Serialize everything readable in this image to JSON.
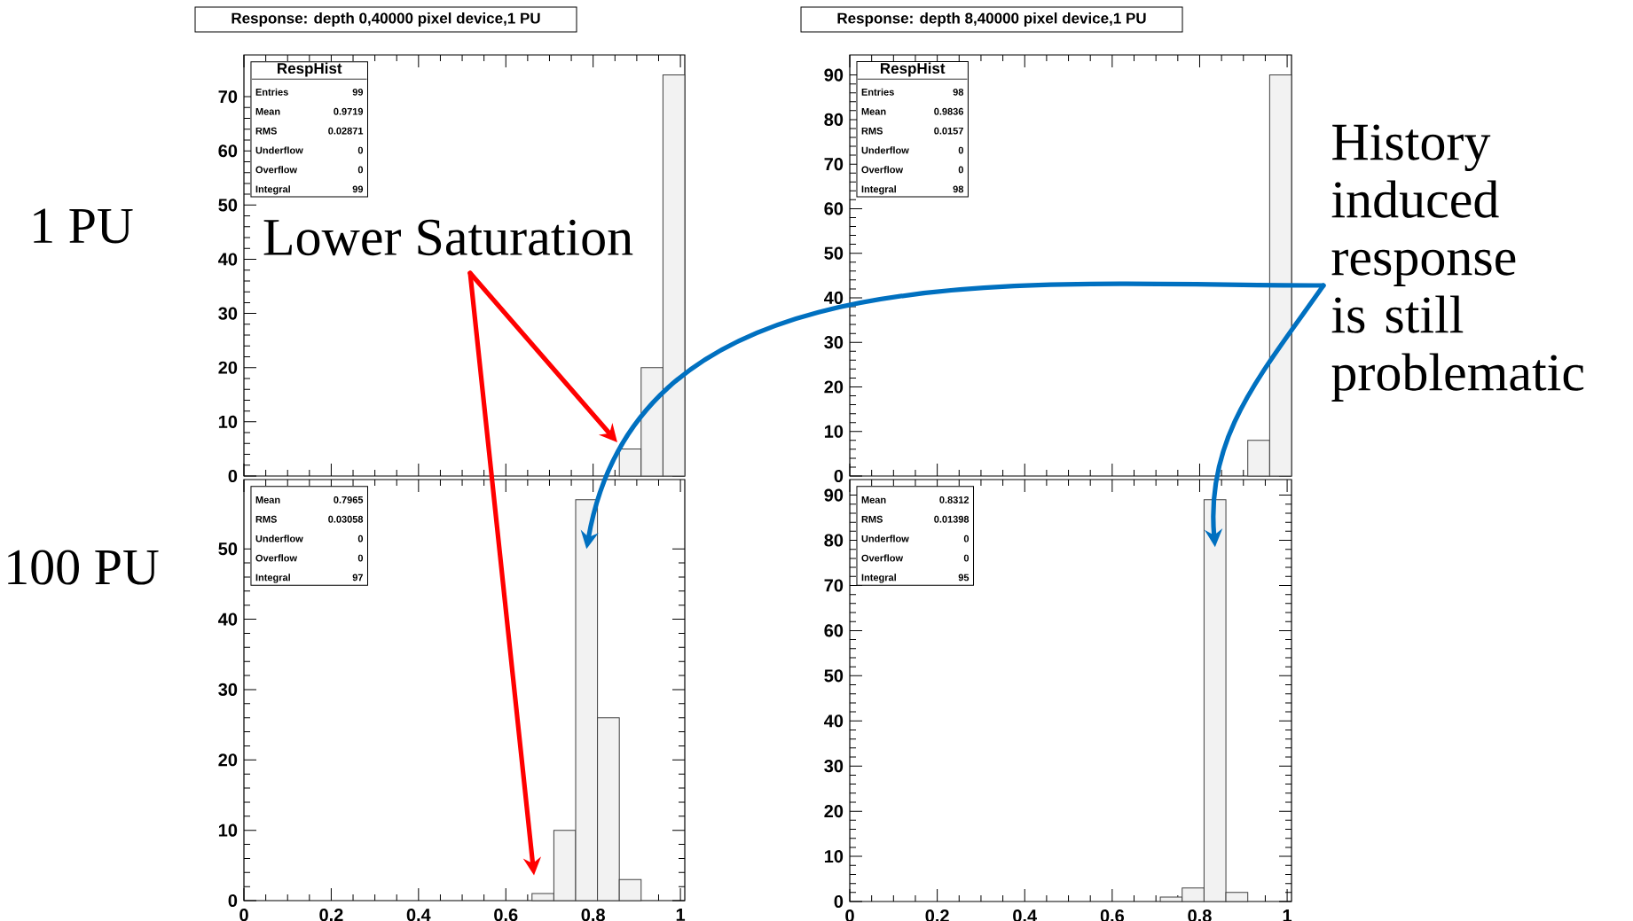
{
  "chart_data": [
    {
      "type": "histogram",
      "title": "Response: depth 0,40000 pixel device,1 PU",
      "ylabel": "1 PU",
      "legend_title": "RespHist",
      "bins": [
        0.86,
        0.91,
        0.96,
        1.01
      ],
      "values": [
        5,
        20,
        74
      ],
      "color": "#f2f2f2",
      "xlim": [
        0,
        1.01
      ],
      "ylim": [
        0,
        77.7
      ],
      "xticks": [
        0,
        0.2,
        0.4,
        0.6,
        0.8,
        1
      ],
      "yticks": [
        0,
        10,
        20,
        30,
        40,
        50,
        60,
        70
      ],
      "tick_labels": "y",
      "annotations": [
        "Entries",
        "99",
        "Mean",
        "0.9719",
        "RMS",
        "0.02871",
        "Underflow",
        "0",
        "Overflow",
        "0",
        "Integral",
        "99",
        "Lower Saturation"
      ]
    },
    {
      "type": "histogram",
      "title": "Response: depth 8,40000 pixel device,1 PU",
      "legend_title": "RespHist",
      "bins": [
        0.91,
        0.96,
        1.01
      ],
      "values": [
        8,
        90
      ],
      "color": "#f2f2f2",
      "xlim": [
        0,
        1.01
      ],
      "ylim": [
        0,
        94.5
      ],
      "xticks": [
        0,
        0.2,
        0.4,
        0.6,
        0.8,
        1
      ],
      "yticks": [
        0,
        10,
        20,
        30,
        40,
        50,
        60,
        70,
        80,
        90
      ],
      "tick_labels": "y",
      "annotations": [
        "Entries",
        "98",
        "Mean",
        "0.9836",
        "RMS",
        "0.0157",
        "Underflow",
        "0",
        "Overflow",
        "0",
        "Integral",
        "98"
      ]
    },
    {
      "type": "histogram",
      "ylabel": "100 PU",
      "bins": [
        0.66,
        0.71,
        0.76,
        0.81,
        0.86,
        0.91
      ],
      "values": [
        1,
        10,
        57,
        26,
        3
      ],
      "color": "#f2f2f2",
      "xlim": [
        0,
        1.01
      ],
      "ylim": [
        0,
        59.85
      ],
      "xticks": [
        0,
        0.2,
        0.4,
        0.6,
        0.8,
        1
      ],
      "yticks": [
        0,
        10,
        20,
        30,
        40,
        50
      ],
      "annotations": [
        "Mean",
        "0.7965",
        "RMS",
        "0.03058",
        "Underflow",
        "0",
        "Overflow",
        "0",
        "Integral",
        "97"
      ]
    },
    {
      "type": "histogram",
      "bins": [
        0.71,
        0.76,
        0.81,
        0.86,
        0.91
      ],
      "values": [
        1,
        3,
        89,
        2
      ],
      "color": "#f2f2f2",
      "xlim": [
        0,
        1.01
      ],
      "ylim": [
        0,
        93.45
      ],
      "xticks": [
        0,
        0.2,
        0.4,
        0.6,
        0.8,
        1
      ],
      "yticks": [
        0,
        10,
        20,
        30,
        40,
        50,
        60,
        70,
        80,
        90
      ],
      "annotations": [
        "Mean",
        "0.8312",
        "RMS",
        "0.01398",
        "Underflow",
        "0",
        "Overflow",
        "0",
        "Integral",
        "95",
        "History induced response is still problematic"
      ]
    }
  ]
}
